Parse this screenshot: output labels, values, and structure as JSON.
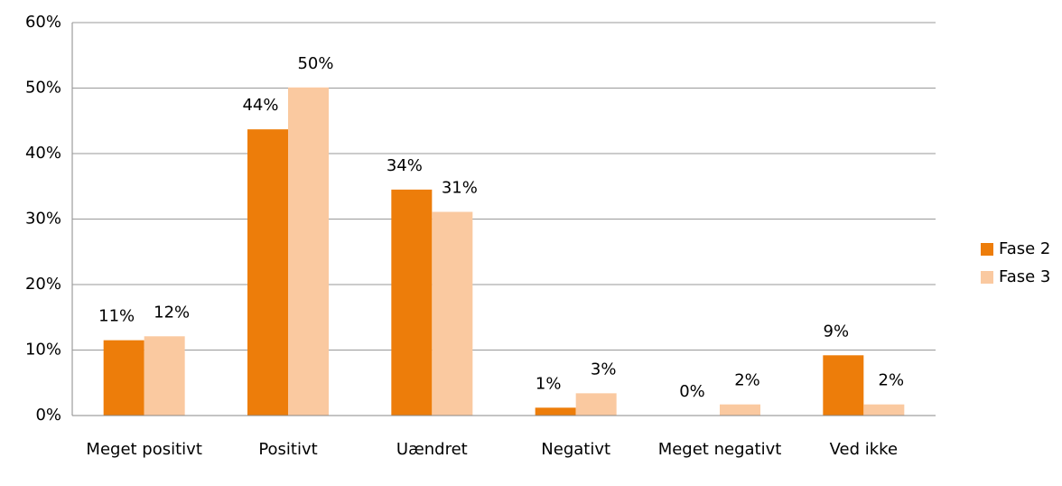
{
  "chart_data": {
    "type": "bar",
    "categories": [
      "Meget positivt",
      "Positivt",
      "Uændret",
      "Negativt",
      "Meget negativt",
      "Ved ikke"
    ],
    "series": [
      {
        "name": "Fase 2",
        "color": "#ed7d0a",
        "values": [
          11.5,
          43.7,
          34.5,
          1.2,
          0,
          9.2
        ],
        "value_labels": [
          "11%",
          "44%",
          "34%",
          "1%",
          "0%",
          "9%"
        ]
      },
      {
        "name": "Fase 3",
        "color": "#fac9a0",
        "values": [
          12.1,
          50.1,
          31.1,
          3.4,
          1.7,
          1.7
        ],
        "value_labels": [
          "12%",
          "50%",
          "31%",
          "3%",
          "2%",
          "2%"
        ]
      }
    ],
    "ylim": [
      0,
      60
    ],
    "yticks": [
      {
        "value": 0,
        "label": "0%"
      },
      {
        "value": 10,
        "label": "10%"
      },
      {
        "value": 20,
        "label": "20%"
      },
      {
        "value": 30,
        "label": "30%"
      },
      {
        "value": 40,
        "label": "40%"
      },
      {
        "value": 50,
        "label": "50%"
      },
      {
        "value": 60,
        "label": "60%"
      }
    ],
    "grid": true,
    "legend": "right"
  }
}
